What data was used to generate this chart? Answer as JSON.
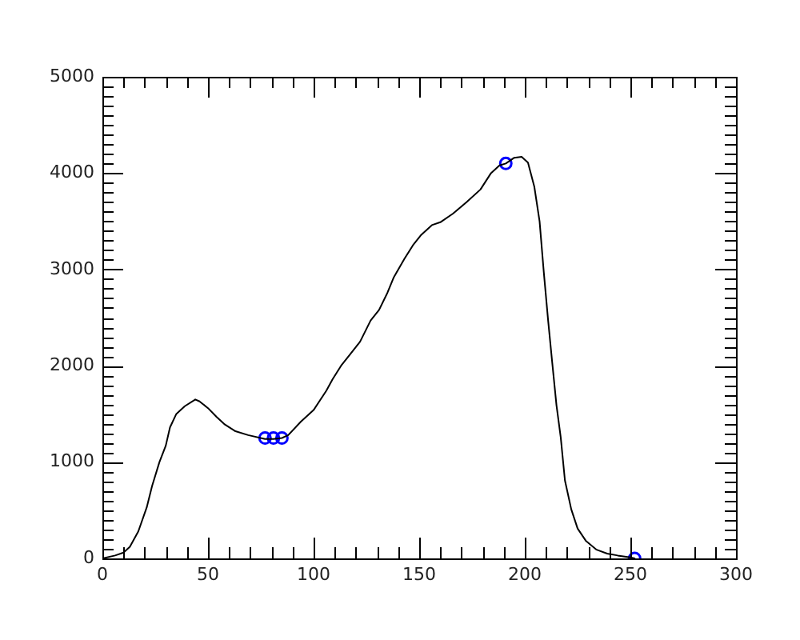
{
  "chart_data": {
    "type": "line",
    "series": [
      {
        "color": "#000000",
        "marker": "none",
        "x": [
          0,
          6,
          10,
          13,
          17,
          21,
          23.5,
          27,
          30,
          32,
          35,
          39,
          44,
          46,
          50,
          54,
          58,
          63,
          69,
          77,
          81,
          85,
          88,
          94,
          100,
          106,
          109,
          113,
          117,
          122,
          127,
          131,
          135,
          138,
          143,
          147,
          151,
          156,
          160,
          166,
          172.5,
          179,
          184,
          188,
          191,
          195,
          198.5,
          201.5,
          204.5,
          207,
          209,
          211,
          213,
          215,
          217,
          219,
          222,
          225,
          229,
          234,
          239,
          244,
          250,
          252
        ],
        "values": [
          0,
          30,
          60,
          120,
          280,
          530,
          750,
          1000,
          1170,
          1360,
          1500,
          1580,
          1650,
          1630,
          1560,
          1470,
          1390,
          1320,
          1280,
          1240,
          1240,
          1250,
          1280,
          1420,
          1540,
          1740,
          1860,
          2000,
          2110,
          2250,
          2470,
          2580,
          2760,
          2920,
          3110,
          3250,
          3360,
          3460,
          3490,
          3580,
          3700,
          3830,
          4000,
          4080,
          4100,
          4160,
          4170,
          4110,
          3860,
          3500,
          2970,
          2480,
          2030,
          1590,
          1260,
          810,
          510,
          310,
          180,
          90,
          50,
          30,
          10,
          0
        ]
      },
      {
        "type": "scatter",
        "color": "#0000ff",
        "marker": "circle",
        "x": [
          77,
          81,
          85,
          191,
          252
        ],
        "values": [
          1250,
          1250,
          1250,
          4100,
          0
        ]
      }
    ],
    "xlim": [
      0,
      300
    ],
    "ylim": [
      0,
      5000
    ],
    "xticks": [
      0,
      {
        "value": 10,
        "label": null
      },
      {
        "value": 20,
        "label": null
      },
      {
        "value": 30,
        "label": null
      },
      {
        "value": 40,
        "label": null
      },
      50,
      {
        "value": 60,
        "label": null
      },
      {
        "value": 70,
        "label": null
      },
      {
        "value": 80,
        "label": null
      },
      {
        "value": 90,
        "label": null
      },
      100,
      {
        "value": 110,
        "label": null
      },
      {
        "value": 120,
        "label": null
      },
      {
        "value": 130,
        "label": null
      },
      {
        "value": 140,
        "label": null
      },
      150,
      {
        "value": 160,
        "label": null
      },
      {
        "value": 170,
        "label": null
      },
      {
        "value": 180,
        "label": null
      },
      {
        "value": 190,
        "label": null
      },
      200,
      {
        "value": 210,
        "label": null
      },
      {
        "value": 220,
        "label": null
      },
      {
        "value": 230,
        "label": null
      },
      {
        "value": 240,
        "label": null
      },
      250,
      {
        "value": 260,
        "label": null
      },
      {
        "value": 270,
        "label": null
      },
      {
        "value": 280,
        "label": null
      },
      {
        "value": 290,
        "label": null
      },
      300
    ],
    "yticks": [
      0,
      {
        "value": 100,
        "label": null
      },
      {
        "value": 200,
        "label": null
      },
      {
        "value": 300,
        "label": null
      },
      {
        "value": 400,
        "label": null
      },
      {
        "value": 500,
        "label": null
      },
      {
        "value": 600,
        "label": null
      },
      {
        "value": 700,
        "label": null
      },
      {
        "value": 800,
        "label": null
      },
      {
        "value": 900,
        "label": null
      },
      1000,
      {
        "value": 1100,
        "label": null
      },
      {
        "value": 1200,
        "label": null
      },
      {
        "value": 1300,
        "label": null
      },
      {
        "value": 1400,
        "label": null
      },
      {
        "value": 1500,
        "label": null
      },
      {
        "value": 1600,
        "label": null
      },
      {
        "value": 1700,
        "label": null
      },
      {
        "value": 1800,
        "label": null
      },
      {
        "value": 1900,
        "label": null
      },
      2000,
      {
        "value": 2100,
        "label": null
      },
      {
        "value": 2200,
        "label": null
      },
      {
        "value": 2300,
        "label": null
      },
      {
        "value": 2400,
        "label": null
      },
      {
        "value": 2500,
        "label": null
      },
      {
        "value": 2600,
        "label": null
      },
      {
        "value": 2700,
        "label": null
      },
      {
        "value": 2800,
        "label": null
      },
      {
        "value": 2900,
        "label": null
      },
      3000,
      {
        "value": 3100,
        "label": null
      },
      {
        "value": 3200,
        "label": null
      },
      {
        "value": 3300,
        "label": null
      },
      {
        "value": 3400,
        "label": null
      },
      {
        "value": 3500,
        "label": null
      },
      {
        "value": 3600,
        "label": null
      },
      {
        "value": 3700,
        "label": null
      },
      {
        "value": 3800,
        "label": null
      },
      {
        "value": 3900,
        "label": null
      },
      4000,
      {
        "value": 4100,
        "label": null
      },
      {
        "value": 4200,
        "label": null
      },
      {
        "value": 4300,
        "label": null
      },
      {
        "value": 4400,
        "label": null
      },
      {
        "value": 4500,
        "label": null
      },
      {
        "value": 4600,
        "label": null
      },
      {
        "value": 4700,
        "label": null
      },
      {
        "value": 4800,
        "label": null
      },
      {
        "value": 4900,
        "label": null
      },
      5000
    ],
    "grid": false,
    "legend": false
  }
}
